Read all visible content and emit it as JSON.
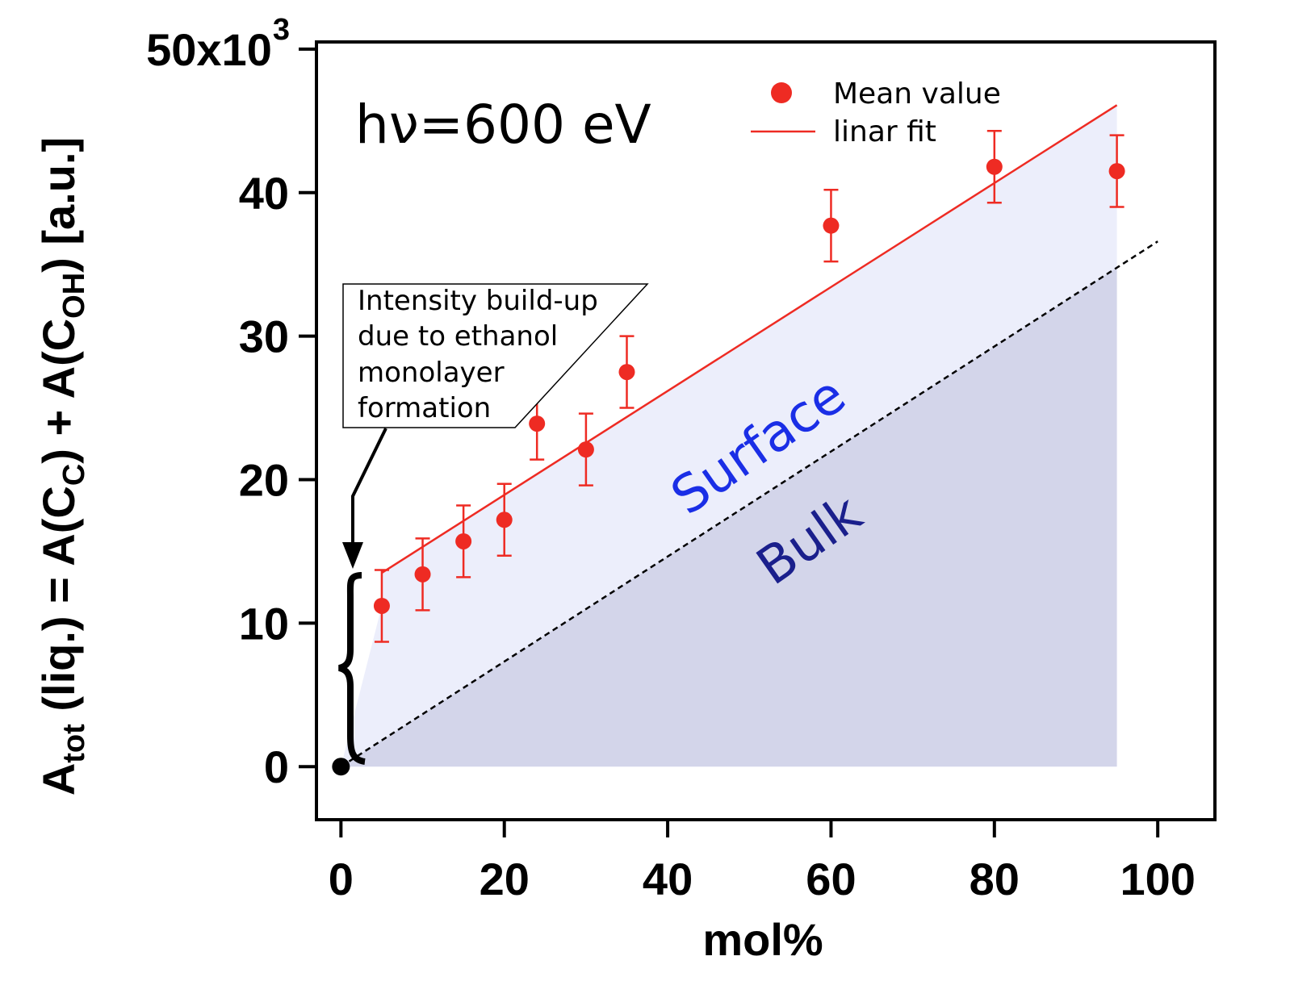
{
  "chart_data": {
    "type": "scatter",
    "xlabel": "mol%",
    "ylabel": {
      "parts": [
        "A",
        "tot",
        " (liq.) = A(C",
        "C",
        ") + A(C",
        "OH",
        ") [a.u.]"
      ]
    },
    "xlim": [
      -3,
      107
    ],
    "ylim": [
      -3700,
      50500
    ],
    "x_ticks": [
      0,
      20,
      40,
      60,
      80,
      100
    ],
    "x_tick_labels": [
      "0",
      "20",
      "40",
      "60",
      "80",
      "100"
    ],
    "y_ticks": [
      0,
      10000,
      20000,
      30000,
      40000,
      50000
    ],
    "y_tick_labels": [
      "0",
      "10",
      "20",
      "30",
      "40",
      "50x10"
    ],
    "y_exponent_label": "3",
    "grid": false,
    "legend_position": "top-right",
    "photon_energy_label": "hν=600 eV",
    "colors": {
      "series": "#ee2b23",
      "surface_fill": "#eceefb",
      "bulk_fill": "#d3d5ea",
      "surface_label": "#1a2ee6",
      "bulk_label": "#1a1f8c"
    },
    "series": [
      {
        "name": "Mean value",
        "x": [
          5,
          10,
          15,
          20,
          24,
          30,
          35,
          60,
          80,
          95
        ],
        "y": [
          11200,
          13400,
          15700,
          17200,
          23900,
          22100,
          27500,
          37700,
          41800,
          41500
        ],
        "error": [
          2500,
          2500,
          2500,
          2500,
          2500,
          2500,
          2500,
          2500,
          2500,
          2500
        ]
      }
    ],
    "fit": {
      "name": "linar fit",
      "x": [
        5,
        95
      ],
      "y": [
        13500,
        46100
      ]
    },
    "bulk_line": {
      "x": [
        0,
        100
      ],
      "y": [
        0,
        36600
      ]
    },
    "origin_point": {
      "x": 0,
      "y": 0
    },
    "region_labels": {
      "surface": "Surface",
      "bulk": "Bulk"
    },
    "annotation": {
      "lines": [
        "Intensity build-up",
        "due to ethanol",
        "monolayer",
        "formation"
      ]
    }
  }
}
